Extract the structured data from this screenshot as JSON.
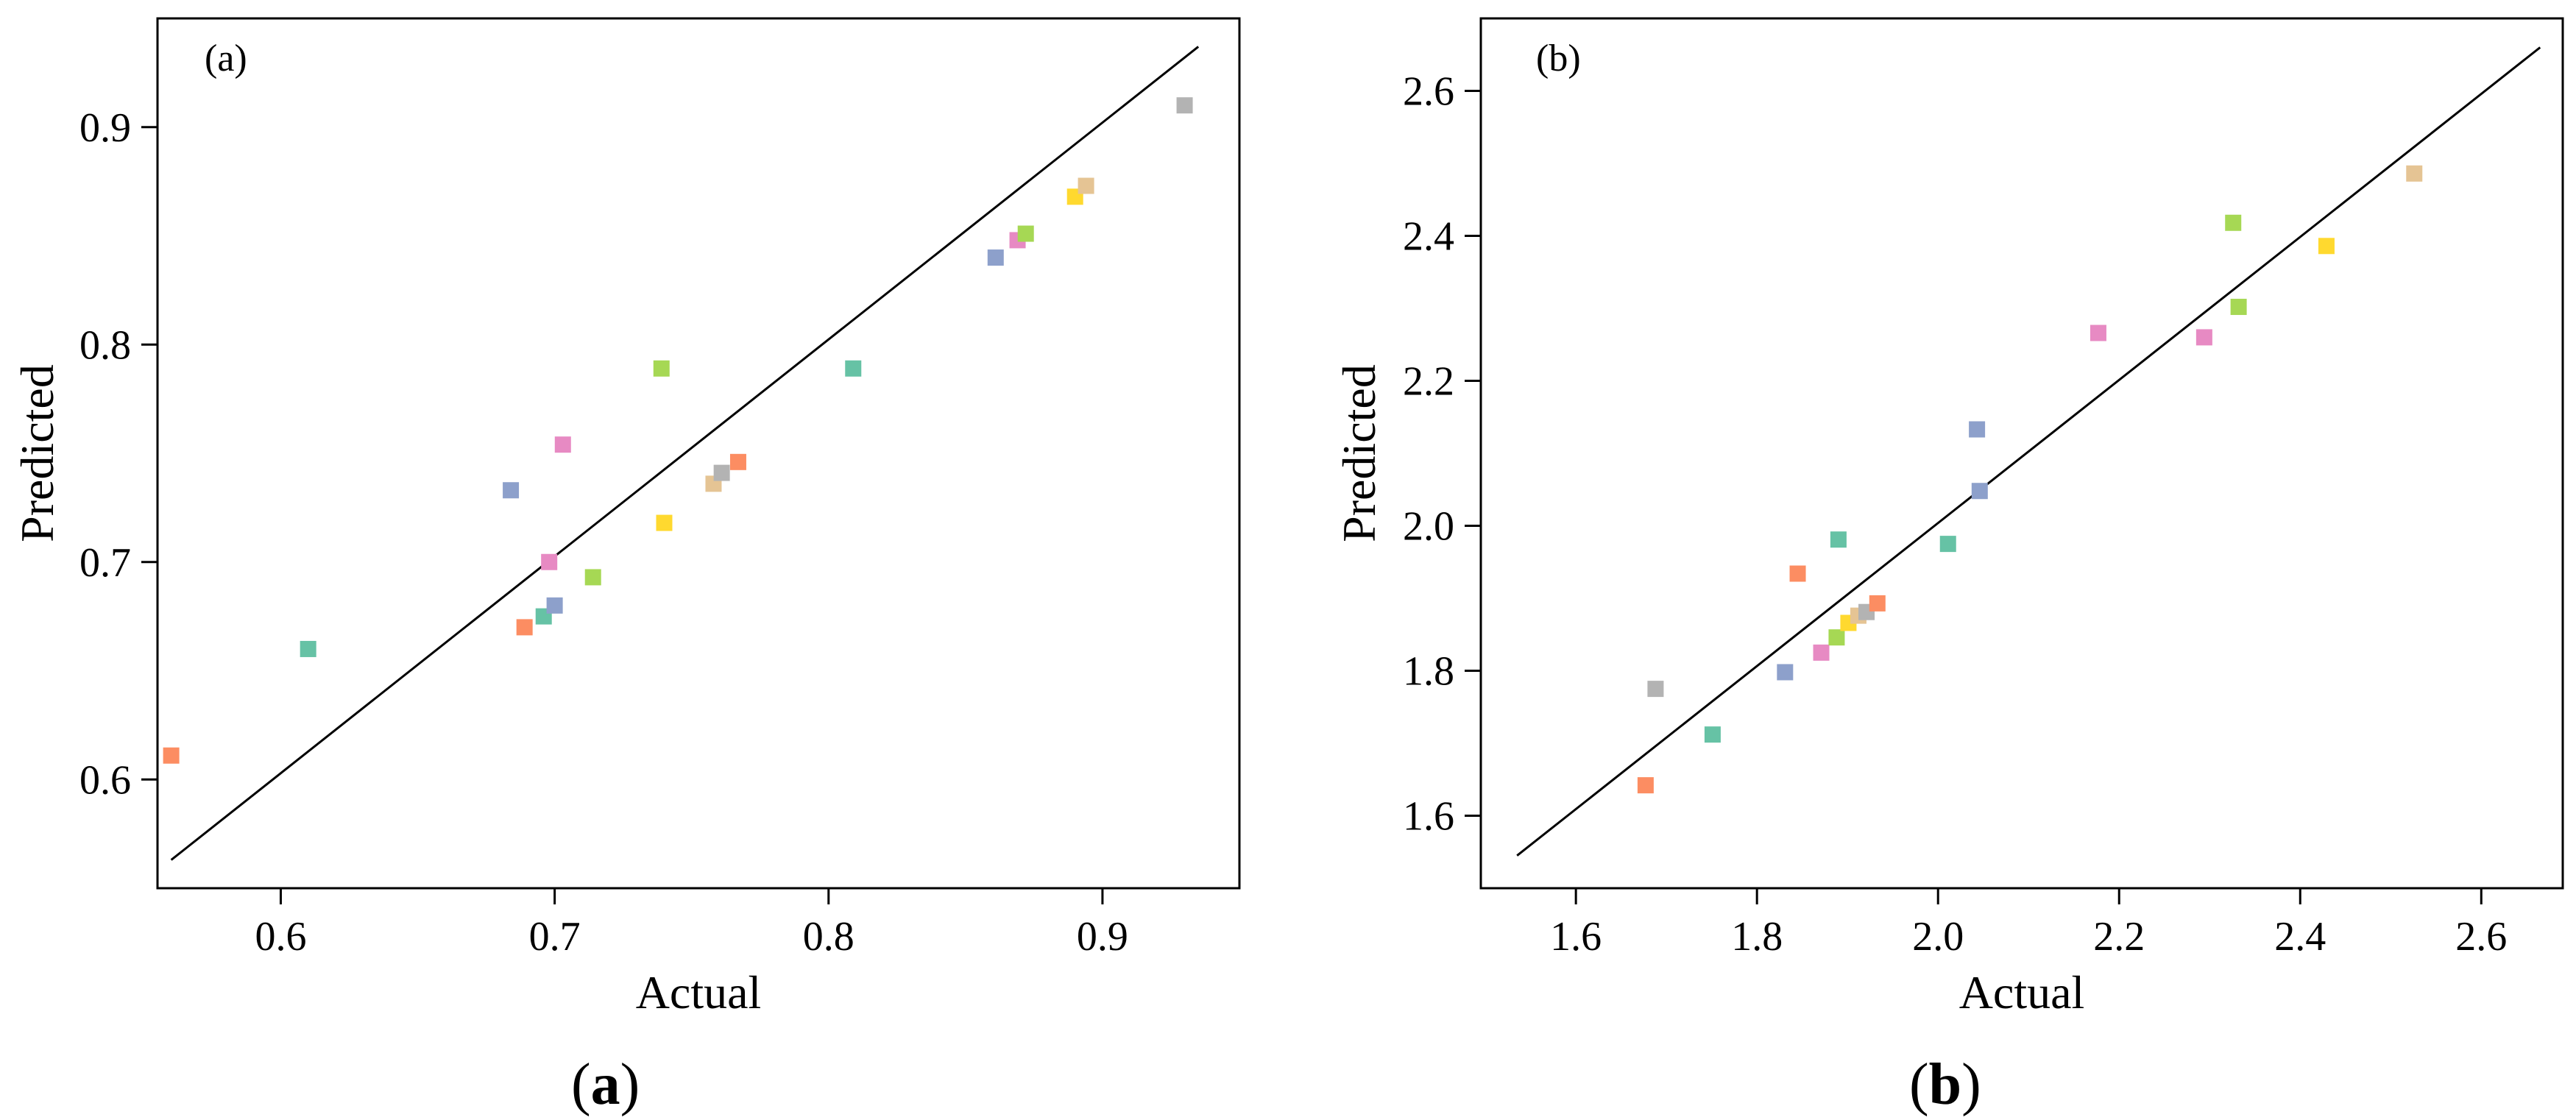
{
  "chart_data": [
    {
      "type": "scatter",
      "panel_label": "(a)",
      "caption_open": "(",
      "caption_letter": "a",
      "caption_close": ")",
      "xlabel": "Actual",
      "ylabel": "Predicted",
      "xlim": [
        0.555,
        0.95
      ],
      "ylim": [
        0.55,
        0.95
      ],
      "xticks": [
        0.6,
        0.7,
        0.8,
        0.9
      ],
      "yticks": [
        0.6,
        0.7,
        0.8,
        0.9
      ],
      "tick_labels_x": [
        "0.6",
        "0.7",
        "0.8",
        "0.9"
      ],
      "tick_labels_y": [
        "0.6",
        "0.7",
        "0.8",
        "0.9"
      ],
      "reference_line": {
        "from": [
          0.56,
          0.563
        ],
        "to": [
          0.935,
          0.937
        ]
      },
      "points": [
        {
          "x": 0.56,
          "y": 0.611,
          "color": "#fc8d62"
        },
        {
          "x": 0.61,
          "y": 0.66,
          "color": "#66c2a5"
        },
        {
          "x": 0.684,
          "y": 0.733,
          "color": "#8da0cb"
        },
        {
          "x": 0.689,
          "y": 0.67,
          "color": "#fc8d62"
        },
        {
          "x": 0.696,
          "y": 0.675,
          "color": "#66c2a5"
        },
        {
          "x": 0.698,
          "y": 0.7,
          "color": "#e78ac3"
        },
        {
          "x": 0.7,
          "y": 0.68,
          "color": "#8da0cb"
        },
        {
          "x": 0.703,
          "y": 0.754,
          "color": "#e78ac3"
        },
        {
          "x": 0.714,
          "y": 0.693,
          "color": "#a6d854"
        },
        {
          "x": 0.739,
          "y": 0.789,
          "color": "#a6d854"
        },
        {
          "x": 0.74,
          "y": 0.718,
          "color": "#ffd92f"
        },
        {
          "x": 0.758,
          "y": 0.736,
          "color": "#e5c494"
        },
        {
          "x": 0.761,
          "y": 0.741,
          "color": "#b3b3b3"
        },
        {
          "x": 0.767,
          "y": 0.746,
          "color": "#fc8d62"
        },
        {
          "x": 0.809,
          "y": 0.789,
          "color": "#66c2a5"
        },
        {
          "x": 0.861,
          "y": 0.84,
          "color": "#8da0cb"
        },
        {
          "x": 0.869,
          "y": 0.848,
          "color": "#e78ac3"
        },
        {
          "x": 0.872,
          "y": 0.851,
          "color": "#a6d854"
        },
        {
          "x": 0.89,
          "y": 0.868,
          "color": "#ffd92f"
        },
        {
          "x": 0.894,
          "y": 0.873,
          "color": "#e5c494"
        },
        {
          "x": 0.93,
          "y": 0.91,
          "color": "#b3b3b3"
        }
      ]
    },
    {
      "type": "scatter",
      "panel_label": "(b)",
      "caption_open": "(",
      "caption_letter": "b",
      "caption_close": ")",
      "xlabel": "Actual",
      "ylabel": "Predicted",
      "xlim": [
        1.495,
        2.69
      ],
      "ylim": [
        1.5,
        2.7
      ],
      "xticks": [
        1.6,
        1.8,
        2.0,
        2.2,
        2.4,
        2.6
      ],
      "yticks": [
        1.6,
        1.8,
        2.0,
        2.2,
        2.4,
        2.6
      ],
      "tick_labels_x": [
        "1.6",
        "1.8",
        "2.0",
        "2.2",
        "2.4",
        "2.6"
      ],
      "tick_labels_y": [
        "1.6",
        "1.8",
        "2.0",
        "2.2",
        "2.4",
        "2.6"
      ],
      "reference_line": {
        "from": [
          1.535,
          1.545
        ],
        "to": [
          2.665,
          2.66
        ]
      },
      "points": [
        {
          "x": 1.677,
          "y": 1.642,
          "color": "#fc8d62"
        },
        {
          "x": 1.688,
          "y": 1.775,
          "color": "#b3b3b3"
        },
        {
          "x": 1.751,
          "y": 1.712,
          "color": "#66c2a5"
        },
        {
          "x": 1.831,
          "y": 1.798,
          "color": "#8da0cb"
        },
        {
          "x": 1.845,
          "y": 1.934,
          "color": "#fc8d62"
        },
        {
          "x": 1.871,
          "y": 1.825,
          "color": "#e78ac3"
        },
        {
          "x": 1.888,
          "y": 1.846,
          "color": "#a6d854"
        },
        {
          "x": 1.89,
          "y": 1.981,
          "color": "#66c2a5"
        },
        {
          "x": 1.901,
          "y": 1.866,
          "color": "#ffd92f"
        },
        {
          "x": 1.912,
          "y": 1.876,
          "color": "#e5c494"
        },
        {
          "x": 1.921,
          "y": 1.881,
          "color": "#b3b3b3"
        },
        {
          "x": 1.933,
          "y": 1.893,
          "color": "#fc8d62"
        },
        {
          "x": 2.011,
          "y": 1.975,
          "color": "#66c2a5"
        },
        {
          "x": 2.043,
          "y": 2.133,
          "color": "#8da0cb"
        },
        {
          "x": 2.046,
          "y": 2.048,
          "color": "#8da0cb"
        },
        {
          "x": 2.177,
          "y": 2.266,
          "color": "#e78ac3"
        },
        {
          "x": 2.294,
          "y": 2.26,
          "color": "#e78ac3"
        },
        {
          "x": 2.326,
          "y": 2.418,
          "color": "#a6d854"
        },
        {
          "x": 2.332,
          "y": 2.302,
          "color": "#a6d854"
        },
        {
          "x": 2.429,
          "y": 2.386,
          "color": "#ffd92f"
        },
        {
          "x": 2.526,
          "y": 2.486,
          "color": "#e5c494"
        }
      ]
    }
  ]
}
